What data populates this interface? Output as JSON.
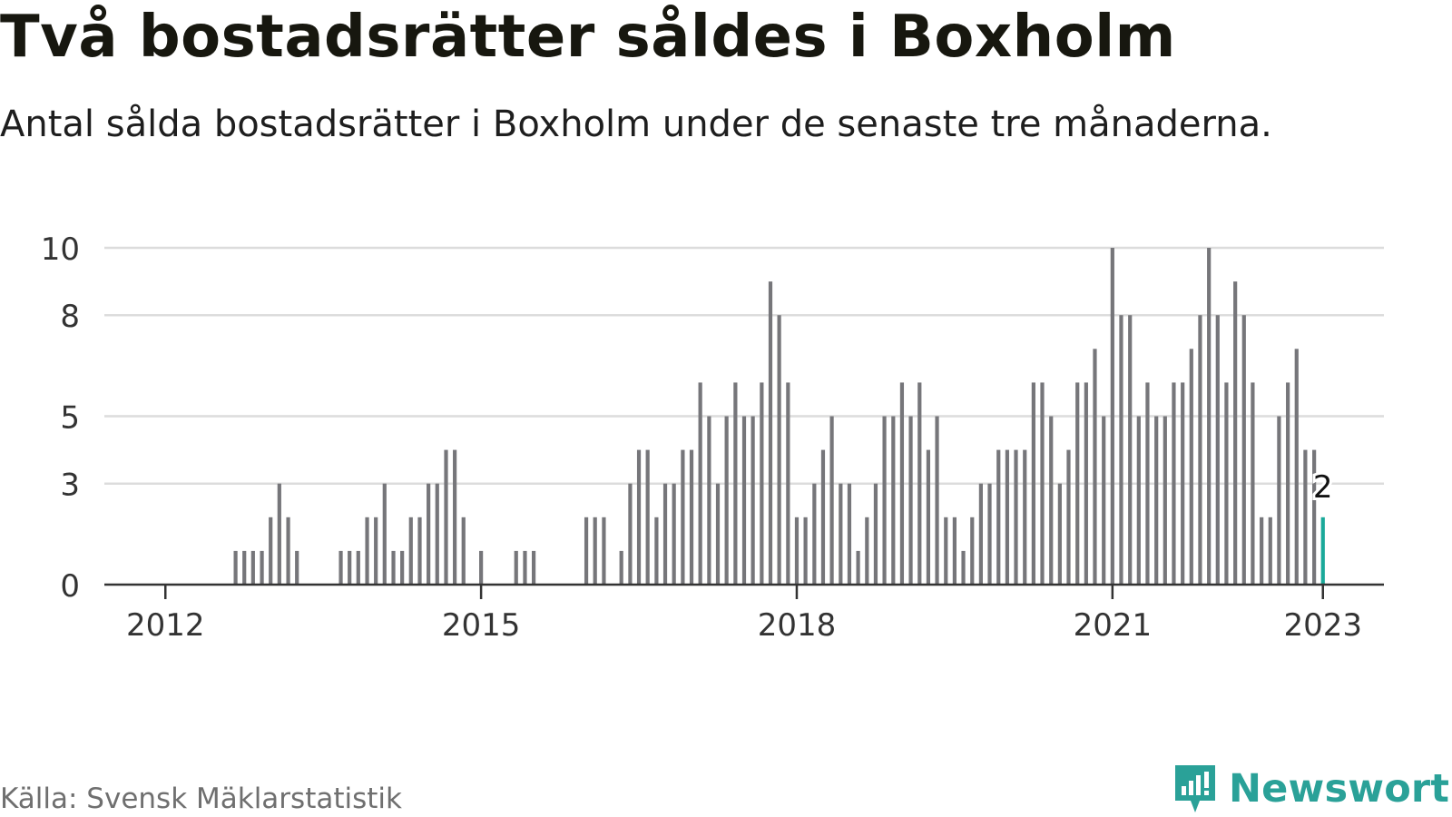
{
  "title": "Två bostadsrätter såldes i Boxholm",
  "subtitle": "Antal sålda bostadsrätter i Boxholm under de senaste tre månaderna.",
  "source": "Källa: Svensk Mäklarstatistik",
  "brand": "Newsworthy",
  "colors": {
    "bar": "#76767a",
    "highlight": "#1aa99a",
    "grid": "#dcdcdc",
    "axis": "#333333",
    "brand": "#2aa198"
  },
  "chart_data": {
    "type": "bar",
    "ylim": [
      0,
      10
    ],
    "yticks": [
      0,
      3,
      5,
      8,
      10
    ],
    "xticks": [
      {
        "label": "2012",
        "x": 2012.0
      },
      {
        "label": "2015",
        "x": 2015.0
      },
      {
        "label": "2018",
        "x": 2018.0
      },
      {
        "label": "2021",
        "x": 2021.0
      },
      {
        "label": "2023",
        "x": 2023.0
      }
    ],
    "xlim": [
      2011.42,
      2023.58
    ],
    "grid": true,
    "annotation": {
      "text": "2"
    },
    "series": [
      {
        "x": [
          2012.0,
          2012.083,
          2012.167,
          2012.25,
          2012.333,
          2012.417,
          2012.5,
          2012.583,
          2012.667,
          2012.75,
          2012.833,
          2012.917,
          2013.0,
          2013.083,
          2013.167,
          2013.25,
          2013.333,
          2013.417,
          2013.5,
          2013.583,
          2013.667,
          2013.75,
          2013.833,
          2013.917,
          2014.0,
          2014.083,
          2014.167,
          2014.25,
          2014.333,
          2014.417,
          2014.5,
          2014.583,
          2014.667,
          2014.75,
          2014.833,
          2014.917,
          2015.0,
          2015.083,
          2015.167,
          2015.25,
          2015.333,
          2015.417,
          2015.5,
          2015.583,
          2015.667,
          2015.75,
          2015.833,
          2015.917,
          2016.0,
          2016.083,
          2016.167,
          2016.25,
          2016.333,
          2016.417,
          2016.5,
          2016.583,
          2016.667,
          2016.75,
          2016.833,
          2016.917,
          2017.0,
          2017.083,
          2017.167,
          2017.25,
          2017.333,
          2017.417,
          2017.5,
          2017.583,
          2017.667,
          2017.75,
          2017.833,
          2017.917,
          2018.0,
          2018.083,
          2018.167,
          2018.25,
          2018.333,
          2018.417,
          2018.5,
          2018.583,
          2018.667,
          2018.75,
          2018.833,
          2018.917,
          2019.0,
          2019.083,
          2019.167,
          2019.25,
          2019.333,
          2019.417,
          2019.5,
          2019.583,
          2019.667,
          2019.75,
          2019.833,
          2019.917,
          2020.0,
          2020.083,
          2020.167,
          2020.25,
          2020.333,
          2020.417,
          2020.5,
          2020.583,
          2020.667,
          2020.75,
          2020.833,
          2020.917,
          2021.0,
          2021.083,
          2021.167,
          2021.25,
          2021.333,
          2021.417,
          2021.5,
          2021.583,
          2021.667,
          2021.75,
          2021.833,
          2021.917,
          2022.0,
          2022.083,
          2022.167,
          2022.25,
          2022.333,
          2022.417,
          2022.5,
          2022.583,
          2022.667,
          2022.75,
          2022.833,
          2022.917,
          2023.0
        ],
        "values": [
          0,
          0,
          0,
          0,
          0,
          0,
          0,
          0,
          1,
          1,
          1,
          1,
          2,
          3,
          2,
          1,
          0,
          0,
          0,
          0,
          1,
          1,
          1,
          2,
          2,
          3,
          1,
          1,
          2,
          2,
          3,
          3,
          4,
          4,
          2,
          0,
          1,
          0,
          0,
          0,
          1,
          1,
          1,
          0,
          0,
          0,
          0,
          0,
          2,
          2,
          2,
          0,
          1,
          3,
          4,
          4,
          2,
          3,
          3,
          4,
          4,
          6,
          5,
          3,
          5,
          6,
          5,
          5,
          6,
          9,
          8,
          6,
          2,
          2,
          3,
          4,
          5,
          3,
          3,
          1,
          2,
          3,
          5,
          5,
          6,
          5,
          6,
          4,
          5,
          2,
          2,
          1,
          2,
          3,
          3,
          4,
          4,
          4,
          4,
          6,
          6,
          5,
          3,
          4,
          6,
          6,
          7,
          5,
          10,
          8,
          8,
          5,
          6,
          5,
          5,
          6,
          6,
          7,
          8,
          10,
          8,
          6,
          9,
          8,
          6,
          2,
          2,
          5,
          6,
          7,
          4,
          4,
          2
        ]
      }
    ]
  }
}
